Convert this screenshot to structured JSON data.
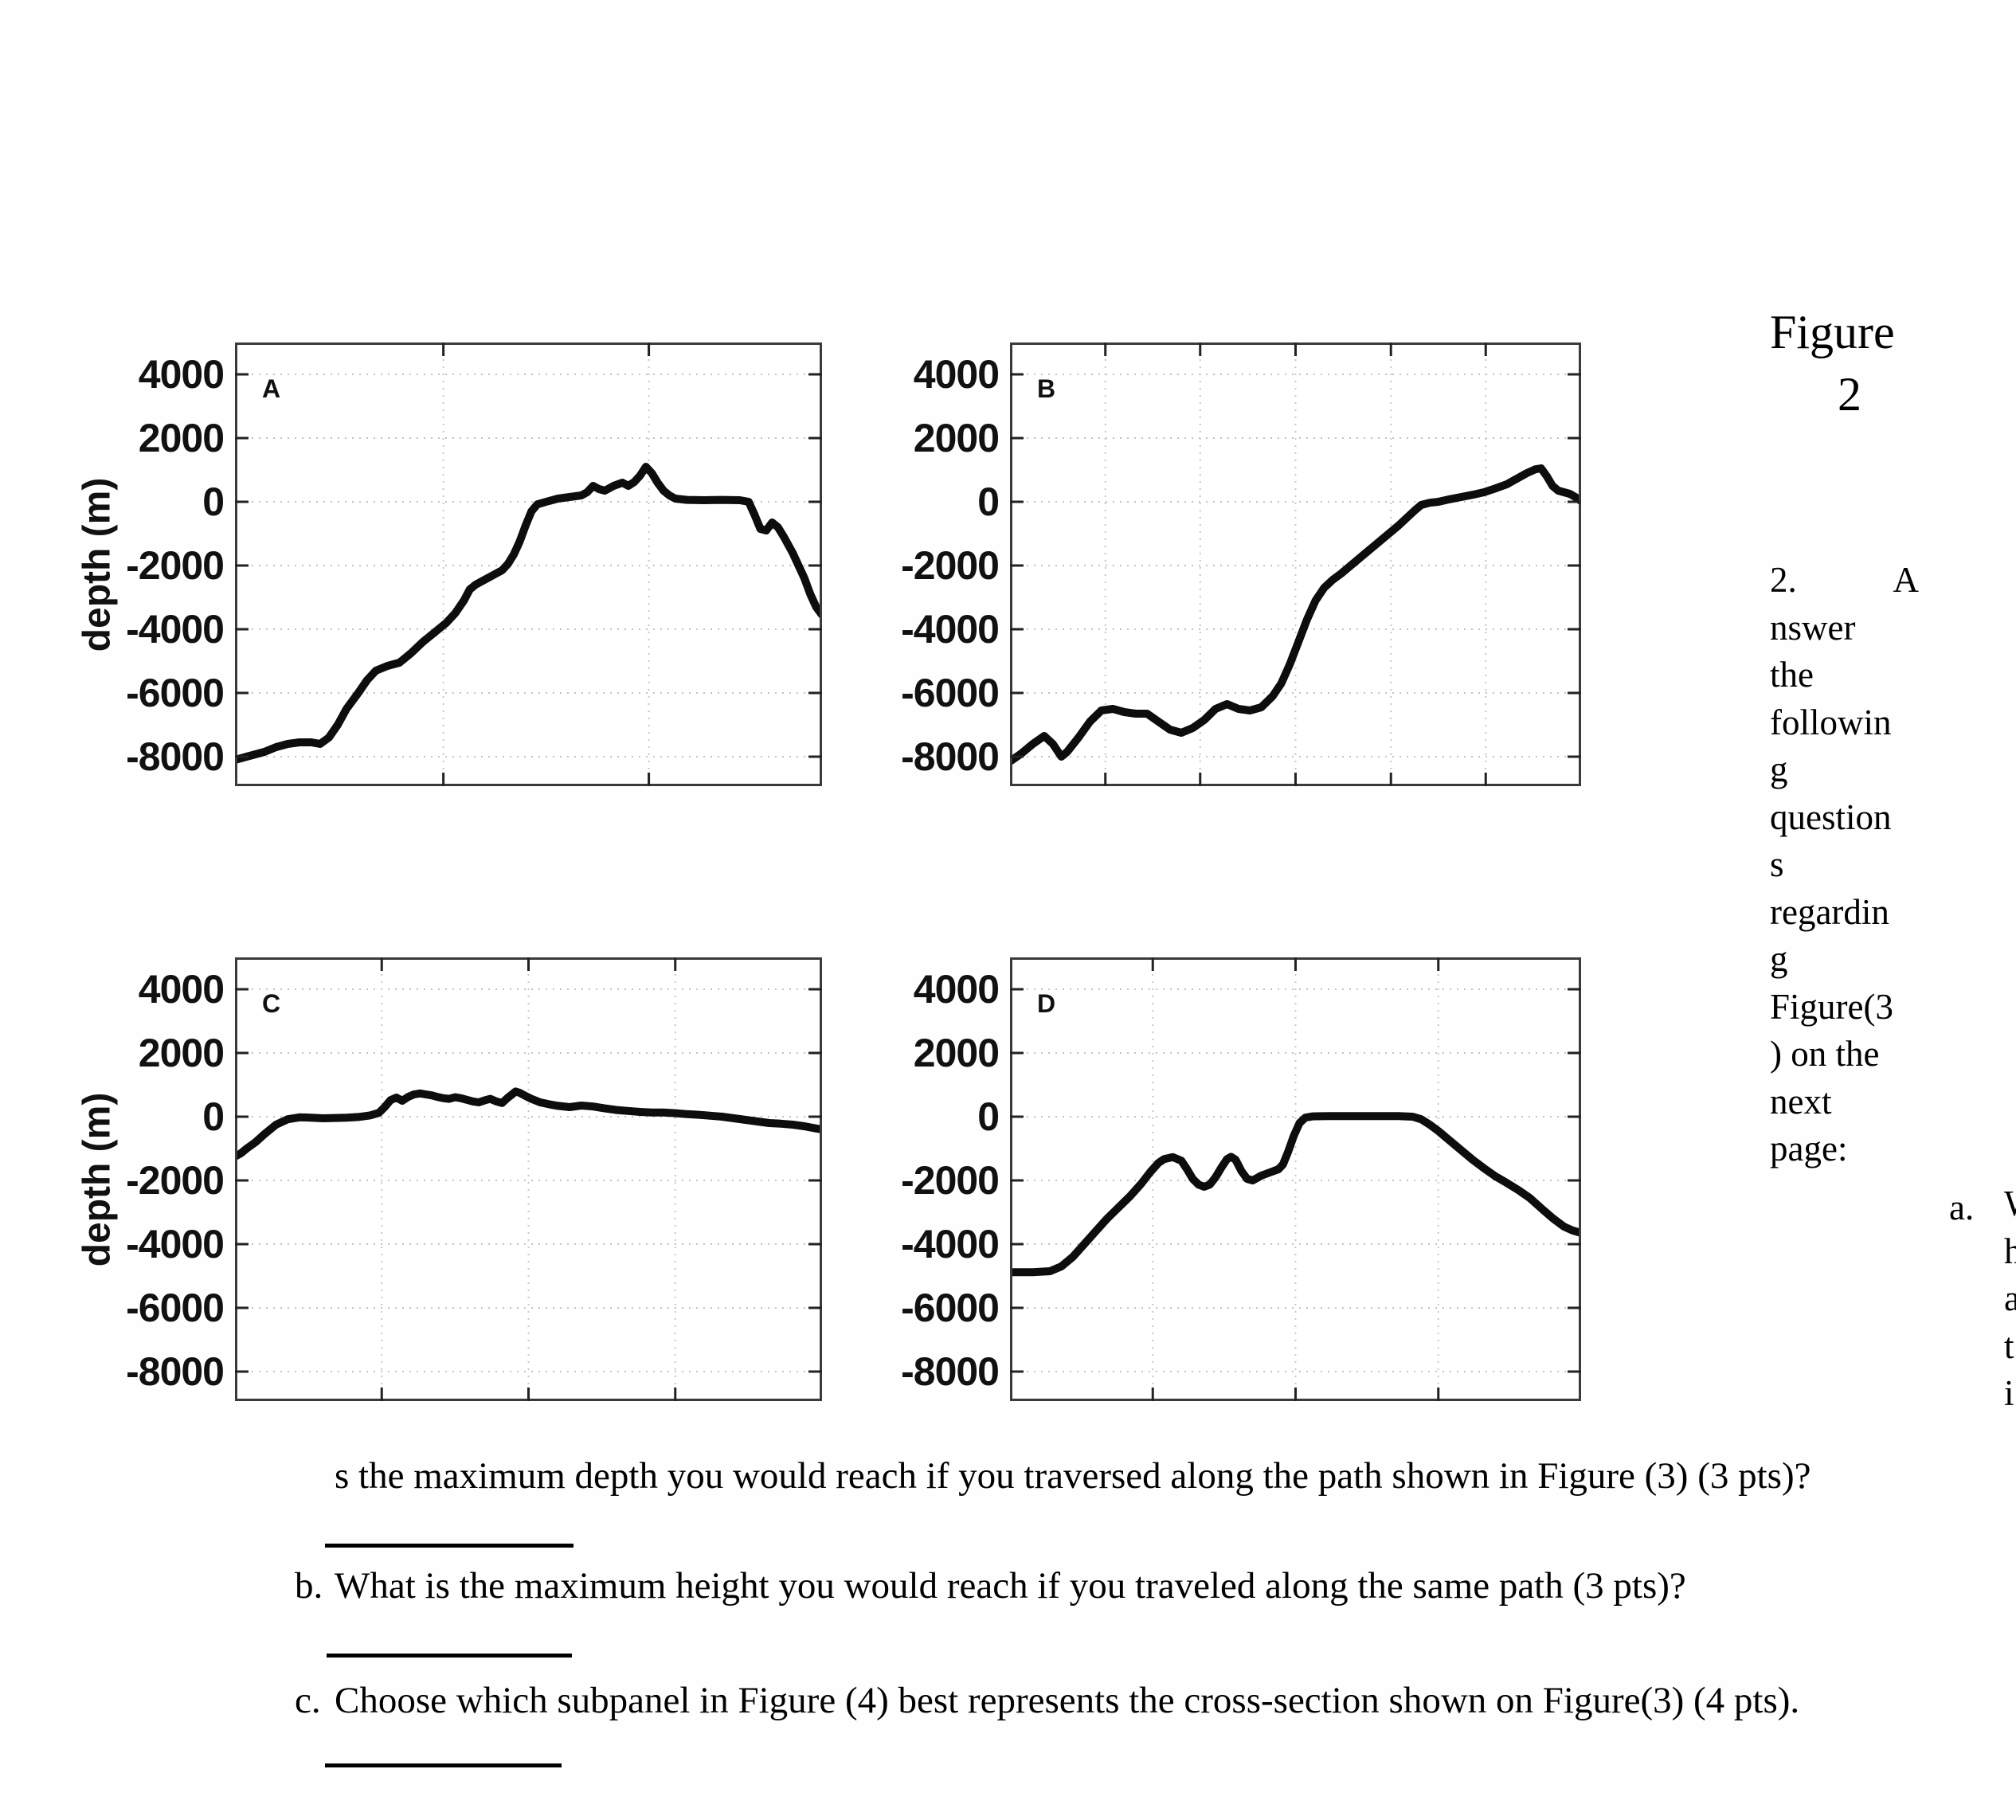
{
  "figure_caption": {
    "line1": "Figure",
    "line2": "2"
  },
  "question_2": {
    "marker": "2.",
    "first_letter": "A",
    "wrapped_lines": [
      "nswer",
      "the",
      "followin",
      "g",
      "question",
      "s",
      "regardin",
      "g",
      "Figure(3",
      ") on the",
      "next",
      "page:"
    ],
    "sub_marker_a": "a.",
    "edge_fragments": [
      "W",
      "h",
      "a",
      "t",
      "",
      "i"
    ]
  },
  "questions": {
    "a_continuation": "s the maximum depth you would reach if you traversed along the path shown in Figure (3) (3 pts)?",
    "b_marker": "b.",
    "b_text": "What is the maximum height you would reach if you traveled along the same path (3 pts)?",
    "c_marker": "c.",
    "c_text": "Choose which subpanel in Figure (4) best represents the cross-section shown on Figure(3) (4 pts)."
  },
  "axis": {
    "ylabel": "depth (m)",
    "ytick_labels": [
      "4000",
      "2000",
      "0",
      "-2000",
      "-4000",
      "-6000",
      "-8000"
    ]
  },
  "chart_data": [
    {
      "type": "line",
      "panel": "A",
      "title": "",
      "xlabel": "",
      "ylabel": "depth (m)",
      "ylim": [
        -8925,
        5000
      ],
      "yticks": [
        4000,
        2000,
        0,
        -2000,
        -4000,
        -6000,
        -8000
      ],
      "grid": "dotted",
      "x_gridlines": [
        0.355,
        0.705
      ],
      "points": [
        [
          0,
          -8100
        ],
        [
          0.02,
          -8000
        ],
        [
          0.05,
          -7850
        ],
        [
          0.07,
          -7700
        ],
        [
          0.09,
          -7600
        ],
        [
          0.11,
          -7550
        ],
        [
          0.13,
          -7550
        ],
        [
          0.145,
          -7600
        ],
        [
          0.16,
          -7400
        ],
        [
          0.175,
          -7000
        ],
        [
          0.19,
          -6500
        ],
        [
          0.21,
          -6000
        ],
        [
          0.225,
          -5600
        ],
        [
          0.24,
          -5300
        ],
        [
          0.26,
          -5150
        ],
        [
          0.28,
          -5050
        ],
        [
          0.3,
          -4750
        ],
        [
          0.32,
          -4400
        ],
        [
          0.34,
          -4100
        ],
        [
          0.36,
          -3800
        ],
        [
          0.375,
          -3500
        ],
        [
          0.39,
          -3100
        ],
        [
          0.4,
          -2750
        ],
        [
          0.41,
          -2600
        ],
        [
          0.425,
          -2450
        ],
        [
          0.44,
          -2300
        ],
        [
          0.455,
          -2150
        ],
        [
          0.465,
          -1950
        ],
        [
          0.475,
          -1650
        ],
        [
          0.485,
          -1250
        ],
        [
          0.495,
          -750
        ],
        [
          0.505,
          -300
        ],
        [
          0.515,
          -80
        ],
        [
          0.53,
          0
        ],
        [
          0.55,
          100
        ],
        [
          0.57,
          150
        ],
        [
          0.59,
          200
        ],
        [
          0.6,
          300
        ],
        [
          0.61,
          500
        ],
        [
          0.62,
          400
        ],
        [
          0.63,
          350
        ],
        [
          0.645,
          500
        ],
        [
          0.66,
          600
        ],
        [
          0.67,
          500
        ],
        [
          0.68,
          620
        ],
        [
          0.69,
          820
        ],
        [
          0.7,
          1100
        ],
        [
          0.71,
          900
        ],
        [
          0.72,
          600
        ],
        [
          0.73,
          350
        ],
        [
          0.74,
          200
        ],
        [
          0.75,
          100
        ],
        [
          0.77,
          60
        ],
        [
          0.8,
          50
        ],
        [
          0.83,
          60
        ],
        [
          0.86,
          50
        ],
        [
          0.875,
          0
        ],
        [
          0.885,
          -400
        ],
        [
          0.895,
          -850
        ],
        [
          0.905,
          -900
        ],
        [
          0.915,
          -650
        ],
        [
          0.925,
          -800
        ],
        [
          0.935,
          -1100
        ],
        [
          0.95,
          -1600
        ],
        [
          0.96,
          -2000
        ],
        [
          0.97,
          -2400
        ],
        [
          0.98,
          -2900
        ],
        [
          0.99,
          -3300
        ],
        [
          1,
          -3550
        ]
      ]
    },
    {
      "type": "line",
      "panel": "B",
      "title": "",
      "xlabel": "",
      "ylabel": "depth (m)",
      "ylim": [
        -8925,
        5000
      ],
      "yticks": [
        4000,
        2000,
        0,
        -2000,
        -4000,
        -6000,
        -8000
      ],
      "grid": "dotted",
      "x_gridlines": [
        0.167,
        0.333,
        0.5,
        0.667,
        0.833
      ],
      "points": [
        [
          0,
          -8150
        ],
        [
          0.02,
          -7900
        ],
        [
          0.04,
          -7600
        ],
        [
          0.06,
          -7350
        ],
        [
          0.075,
          -7600
        ],
        [
          0.09,
          -8000
        ],
        [
          0.1,
          -7850
        ],
        [
          0.12,
          -7400
        ],
        [
          0.14,
          -6900
        ],
        [
          0.16,
          -6550
        ],
        [
          0.18,
          -6500
        ],
        [
          0.2,
          -6600
        ],
        [
          0.22,
          -6650
        ],
        [
          0.24,
          -6650
        ],
        [
          0.26,
          -6900
        ],
        [
          0.28,
          -7150
        ],
        [
          0.3,
          -7250
        ],
        [
          0.32,
          -7100
        ],
        [
          0.34,
          -6850
        ],
        [
          0.36,
          -6500
        ],
        [
          0.38,
          -6350
        ],
        [
          0.4,
          -6500
        ],
        [
          0.42,
          -6550
        ],
        [
          0.44,
          -6450
        ],
        [
          0.46,
          -6100
        ],
        [
          0.475,
          -5700
        ],
        [
          0.49,
          -5100
        ],
        [
          0.505,
          -4400
        ],
        [
          0.52,
          -3700
        ],
        [
          0.535,
          -3100
        ],
        [
          0.55,
          -2700
        ],
        [
          0.565,
          -2450
        ],
        [
          0.58,
          -2250
        ],
        [
          0.6,
          -1950
        ],
        [
          0.62,
          -1650
        ],
        [
          0.64,
          -1350
        ],
        [
          0.66,
          -1050
        ],
        [
          0.68,
          -750
        ],
        [
          0.695,
          -500
        ],
        [
          0.71,
          -250
        ],
        [
          0.72,
          -100
        ],
        [
          0.735,
          -30
        ],
        [
          0.75,
          0
        ],
        [
          0.77,
          80
        ],
        [
          0.79,
          150
        ],
        [
          0.81,
          220
        ],
        [
          0.83,
          300
        ],
        [
          0.85,
          420
        ],
        [
          0.87,
          550
        ],
        [
          0.89,
          750
        ],
        [
          0.905,
          900
        ],
        [
          0.92,
          1020
        ],
        [
          0.93,
          1050
        ],
        [
          0.94,
          800
        ],
        [
          0.95,
          500
        ],
        [
          0.96,
          350
        ],
        [
          0.97,
          300
        ],
        [
          0.98,
          250
        ],
        [
          0.99,
          150
        ],
        [
          1,
          20
        ]
      ]
    },
    {
      "type": "line",
      "panel": "C",
      "title": "",
      "xlabel": "",
      "ylabel": "depth (m)",
      "ylim": [
        -8925,
        5000
      ],
      "yticks": [
        4000,
        2000,
        0,
        -2000,
        -4000,
        -6000,
        -8000
      ],
      "grid": "dotted",
      "x_gridlines": [
        0.25,
        0.5,
        0.75
      ],
      "points": [
        [
          0,
          -1250
        ],
        [
          0.01,
          -1150
        ],
        [
          0.02,
          -1000
        ],
        [
          0.035,
          -800
        ],
        [
          0.05,
          -550
        ],
        [
          0.07,
          -250
        ],
        [
          0.09,
          -80
        ],
        [
          0.11,
          -20
        ],
        [
          0.13,
          -30
        ],
        [
          0.15,
          -50
        ],
        [
          0.17,
          -40
        ],
        [
          0.19,
          -30
        ],
        [
          0.21,
          -10
        ],
        [
          0.23,
          40
        ],
        [
          0.245,
          120
        ],
        [
          0.255,
          300
        ],
        [
          0.265,
          520
        ],
        [
          0.275,
          600
        ],
        [
          0.285,
          500
        ],
        [
          0.295,
          620
        ],
        [
          0.305,
          700
        ],
        [
          0.315,
          730
        ],
        [
          0.325,
          700
        ],
        [
          0.335,
          670
        ],
        [
          0.345,
          620
        ],
        [
          0.355,
          580
        ],
        [
          0.365,
          560
        ],
        [
          0.375,
          610
        ],
        [
          0.385,
          580
        ],
        [
          0.395,
          530
        ],
        [
          0.405,
          480
        ],
        [
          0.415,
          450
        ],
        [
          0.425,
          510
        ],
        [
          0.435,
          560
        ],
        [
          0.445,
          480
        ],
        [
          0.455,
          430
        ],
        [
          0.465,
          600
        ],
        [
          0.472,
          700
        ],
        [
          0.478,
          790
        ],
        [
          0.485,
          750
        ],
        [
          0.495,
          650
        ],
        [
          0.505,
          560
        ],
        [
          0.52,
          450
        ],
        [
          0.535,
          390
        ],
        [
          0.55,
          340
        ],
        [
          0.57,
          300
        ],
        [
          0.59,
          350
        ],
        [
          0.61,
          320
        ],
        [
          0.63,
          260
        ],
        [
          0.65,
          210
        ],
        [
          0.67,
          180
        ],
        [
          0.69,
          150
        ],
        [
          0.71,
          130
        ],
        [
          0.73,
          130
        ],
        [
          0.75,
          110
        ],
        [
          0.77,
          80
        ],
        [
          0.79,
          60
        ],
        [
          0.81,
          30
        ],
        [
          0.83,
          0
        ],
        [
          0.85,
          -50
        ],
        [
          0.87,
          -100
        ],
        [
          0.89,
          -150
        ],
        [
          0.91,
          -200
        ],
        [
          0.93,
          -220
        ],
        [
          0.95,
          -250
        ],
        [
          0.97,
          -300
        ],
        [
          0.99,
          -370
        ],
        [
          1,
          -400
        ]
      ]
    },
    {
      "type": "line",
      "panel": "D",
      "title": "",
      "xlabel": "",
      "ylabel": "depth (m)",
      "ylim": [
        -8925,
        5000
      ],
      "yticks": [
        4000,
        2000,
        0,
        -2000,
        -4000,
        -6000,
        -8000
      ],
      "grid": "dotted",
      "x_gridlines": [
        0.25,
        0.5,
        0.75
      ],
      "points": [
        [
          0,
          -4880
        ],
        [
          0.04,
          -4880
        ],
        [
          0.07,
          -4850
        ],
        [
          0.09,
          -4700
        ],
        [
          0.11,
          -4400
        ],
        [
          0.13,
          -4000
        ],
        [
          0.15,
          -3600
        ],
        [
          0.17,
          -3200
        ],
        [
          0.19,
          -2850
        ],
        [
          0.21,
          -2500
        ],
        [
          0.23,
          -2100
        ],
        [
          0.245,
          -1750
        ],
        [
          0.26,
          -1450
        ],
        [
          0.27,
          -1330
        ],
        [
          0.285,
          -1270
        ],
        [
          0.3,
          -1380
        ],
        [
          0.31,
          -1650
        ],
        [
          0.32,
          -1950
        ],
        [
          0.33,
          -2130
        ],
        [
          0.34,
          -2200
        ],
        [
          0.35,
          -2130
        ],
        [
          0.36,
          -1900
        ],
        [
          0.37,
          -1600
        ],
        [
          0.38,
          -1330
        ],
        [
          0.387,
          -1260
        ],
        [
          0.395,
          -1350
        ],
        [
          0.405,
          -1700
        ],
        [
          0.415,
          -1950
        ],
        [
          0.425,
          -2000
        ],
        [
          0.44,
          -1850
        ],
        [
          0.455,
          -1750
        ],
        [
          0.47,
          -1650
        ],
        [
          0.478,
          -1500
        ],
        [
          0.487,
          -1100
        ],
        [
          0.497,
          -600
        ],
        [
          0.507,
          -200
        ],
        [
          0.517,
          -30
        ],
        [
          0.53,
          10
        ],
        [
          0.56,
          20
        ],
        [
          0.6,
          20
        ],
        [
          0.64,
          20
        ],
        [
          0.68,
          20
        ],
        [
          0.705,
          0
        ],
        [
          0.72,
          -80
        ],
        [
          0.735,
          -250
        ],
        [
          0.75,
          -450
        ],
        [
          0.77,
          -750
        ],
        [
          0.79,
          -1050
        ],
        [
          0.81,
          -1350
        ],
        [
          0.83,
          -1620
        ],
        [
          0.85,
          -1870
        ],
        [
          0.87,
          -2080
        ],
        [
          0.89,
          -2300
        ],
        [
          0.91,
          -2550
        ],
        [
          0.93,
          -2870
        ],
        [
          0.95,
          -3180
        ],
        [
          0.97,
          -3450
        ],
        [
          0.985,
          -3570
        ],
        [
          1,
          -3650
        ]
      ]
    }
  ]
}
